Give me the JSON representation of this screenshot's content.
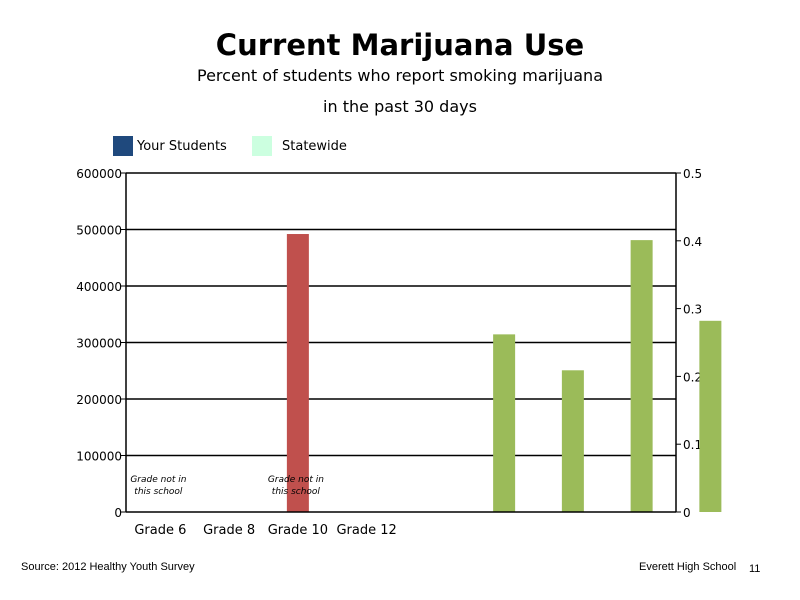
{
  "page": {
    "source": "Source: 2012 Healthy Youth Survey",
    "school": "Everett High School",
    "page_number": "11"
  },
  "chart_data": {
    "type": "bar",
    "title": "Current Marijuana Use",
    "subtitle": [
      "Percent of students who report smoking marijuana",
      "in the past 30 days"
    ],
    "legend": {
      "position": "top-left",
      "entries": [
        {
          "name": "Your Students",
          "color": "#1F497D"
        },
        {
          "name": "Statewide",
          "color": "#CCFFE0"
        }
      ]
    },
    "categories": [
      "Grade 6",
      "Grade 8",
      "Grade 10",
      "Grade 12"
    ],
    "left_axis": {
      "ylim": [
        0,
        600000
      ],
      "ticks": [
        "0",
        "100000",
        "200000",
        "300000",
        "400000",
        "500000",
        "600000"
      ]
    },
    "right_axis": {
      "ylim": [
        0,
        0.5
      ],
      "ticks": [
        "0",
        "0.1",
        "0.2",
        "0.3",
        "0.4",
        "0.5"
      ]
    },
    "grid": true,
    "left_bars": [
      {
        "slot": 3,
        "value": 492000,
        "color": "#C0504D"
      }
    ],
    "right_bars": [
      {
        "slot": 6,
        "value": 0.262,
        "color": "#9BBB59"
      },
      {
        "slot": 7,
        "value": 0.209,
        "color": "#9BBB59"
      },
      {
        "slot": 8,
        "value": 0.401,
        "color": "#9BBB59"
      },
      {
        "slot": 9,
        "value": 0.282,
        "color": "#9BBB59"
      }
    ],
    "annotations": [
      {
        "category": "Grade 6",
        "lines": [
          "Grade not in",
          "this school"
        ]
      },
      {
        "category": "Grade 10",
        "lines": [
          "Grade not in",
          "this school"
        ]
      }
    ]
  }
}
